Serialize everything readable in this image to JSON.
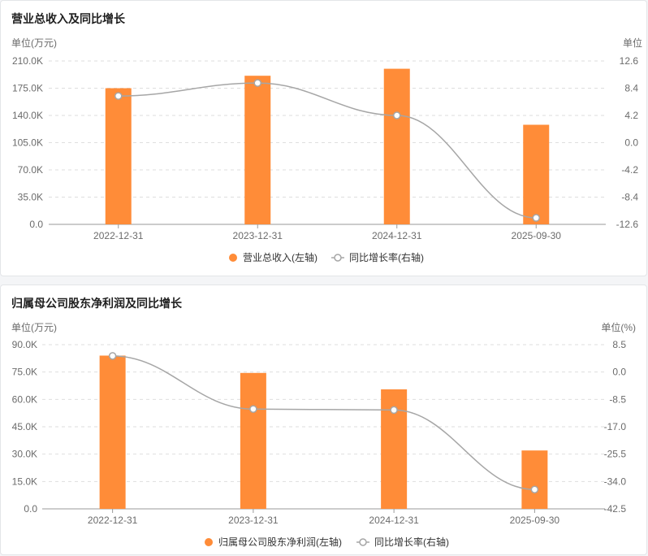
{
  "chart_data": [
    {
      "type": "bar",
      "title": "营业总收入及同比增长",
      "left_unit": "单位(万元)",
      "right_unit": "单位",
      "categories": [
        "2022-12-31",
        "2023-12-31",
        "2024-12-31",
        "2025-09-30"
      ],
      "left_axis": {
        "ticks": [
          "210.0K",
          "175.0K",
          "140.0K",
          "105.0K",
          "70.0K",
          "35.0K",
          "0.0"
        ],
        "min": 0,
        "max": 210000
      },
      "right_axis": {
        "ticks": [
          "12.6",
          "8.4",
          "4.2",
          "0.0",
          "-4.2",
          "-8.4",
          "-12.6"
        ],
        "min": -12.6,
        "max": 12.6
      },
      "series": [
        {
          "name": "营业总收入(左轴)",
          "kind": "bar",
          "axis": "left",
          "values": [
            175000,
            191000,
            200000,
            128000
          ],
          "color": "#ff8c38"
        },
        {
          "name": "同比增长率(右轴)",
          "kind": "line",
          "axis": "right",
          "values": [
            7.2,
            9.2,
            4.2,
            -11.6
          ],
          "color": "#a6a6a6"
        }
      ],
      "grid": true,
      "legend_position": "bottom"
    },
    {
      "type": "bar",
      "title": "归属母公司股东净利润及同比增长",
      "left_unit": "单位(万元)",
      "right_unit": "单位(%)",
      "categories": [
        "2022-12-31",
        "2023-12-31",
        "2024-12-31",
        "2025-09-30"
      ],
      "left_axis": {
        "ticks": [
          "90.0K",
          "75.0K",
          "60.0K",
          "45.0K",
          "30.0K",
          "15.0K",
          "0.0"
        ],
        "min": 0,
        "max": 90000
      },
      "right_axis": {
        "ticks": [
          "8.5",
          "0.0",
          "-8.5",
          "-17.0",
          "-25.5",
          "-34.0",
          "-42.5"
        ],
        "min": -42.5,
        "max": 8.5
      },
      "series": [
        {
          "name": "归属母公司股东净利润(左轴)",
          "kind": "bar",
          "axis": "left",
          "values": [
            84000,
            74500,
            65500,
            32000
          ],
          "color": "#ff8c38"
        },
        {
          "name": "同比增长率(右轴)",
          "kind": "line",
          "axis": "right",
          "values": [
            5.0,
            -11.5,
            -11.8,
            -36.5
          ],
          "color": "#a6a6a6"
        }
      ],
      "grid": true,
      "legend_position": "bottom"
    }
  ]
}
